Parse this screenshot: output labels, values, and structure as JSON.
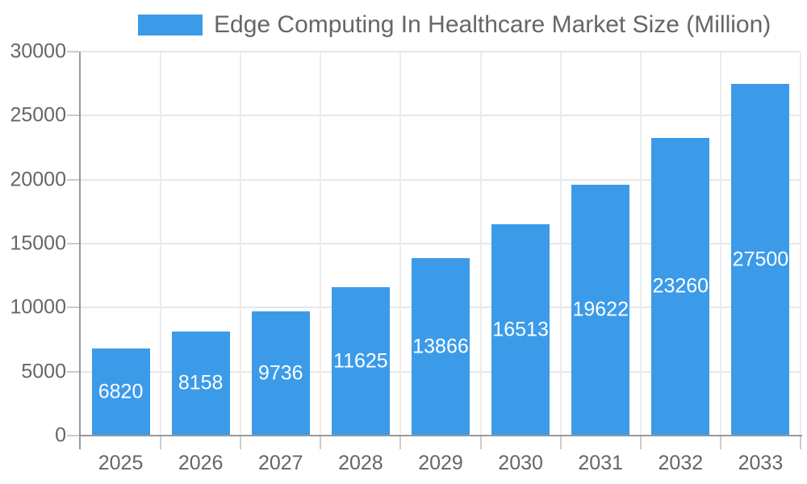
{
  "chart_data": {
    "type": "bar",
    "title": "Edge Computing In Healthcare Market Size (Million)",
    "legend": {
      "position": "top",
      "label": "Edge Computing In Healthcare Market Size (Million)"
    },
    "categories": [
      "2025",
      "2026",
      "2027",
      "2028",
      "2029",
      "2030",
      "2031",
      "2032",
      "2033"
    ],
    "values": [
      6820,
      8158,
      9736,
      11625,
      13866,
      16513,
      19622,
      23260,
      27500
    ],
    "bar_value_labels": [
      "6820",
      "8158",
      "9736",
      "11625",
      "13866",
      "16513",
      "19622",
      "23260",
      "27500"
    ],
    "xlabel": "",
    "ylabel": "",
    "ylim": [
      0,
      30000
    ],
    "ytick_step": 5000,
    "ytick_labels": [
      "0",
      "5000",
      "10000",
      "15000",
      "20000",
      "25000",
      "30000"
    ],
    "grid": true,
    "colors": {
      "bar": "#3c9be9",
      "bar_label_text": "#ffffff",
      "axis_line": "#999999",
      "tick": "#cccccc",
      "gridline": "#e7e7e7",
      "label_text": "#666666",
      "background": "#ffffff"
    }
  }
}
